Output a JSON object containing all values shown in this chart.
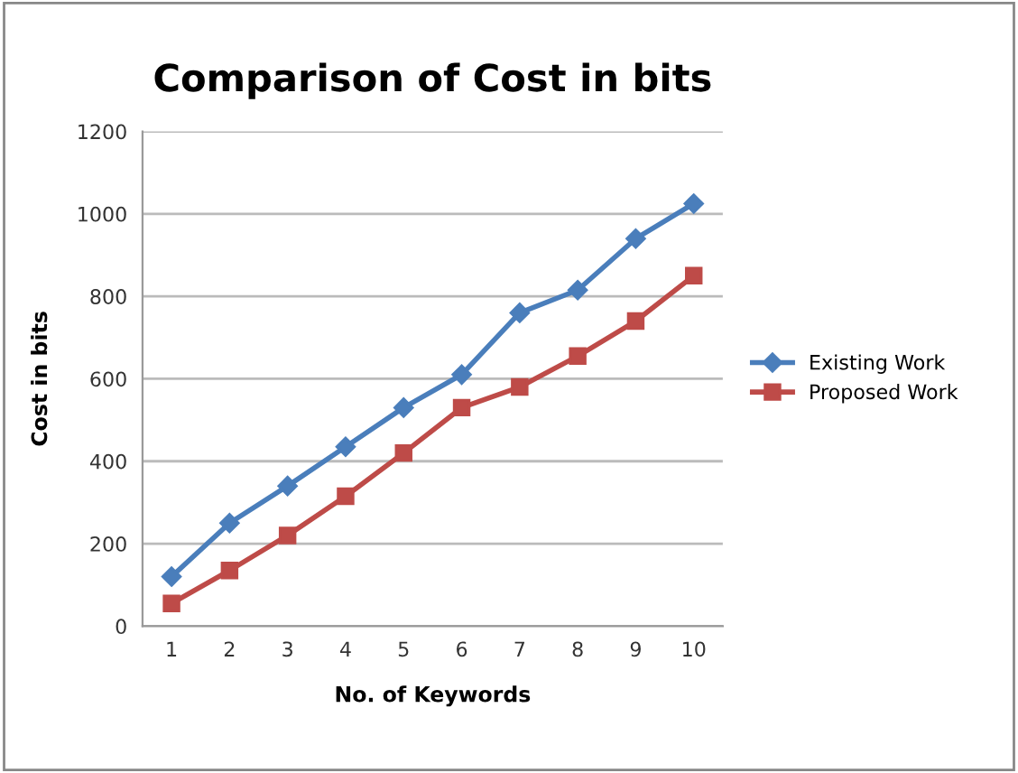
{
  "chart_data": {
    "type": "line",
    "title": "Comparison of Cost in bits",
    "xlabel": "No. of Keywords",
    "ylabel": "Cost in bits",
    "categories": [
      "1",
      "2",
      "3",
      "4",
      "5",
      "6",
      "7",
      "8",
      "9",
      "10"
    ],
    "series": [
      {
        "name": "Existing Work",
        "color": "#4a7ebb",
        "marker": "diamond",
        "values": [
          120,
          250,
          340,
          435,
          530,
          610,
          760,
          815,
          940,
          1025
        ]
      },
      {
        "name": "Proposed Work",
        "color": "#be4b48",
        "marker": "square",
        "values": [
          55,
          135,
          220,
          315,
          420,
          530,
          580,
          655,
          740,
          850
        ]
      }
    ],
    "ylim": [
      0,
      1200
    ],
    "yticks": [
      0,
      200,
      400,
      600,
      800,
      1000,
      1200
    ],
    "grid": "y",
    "legend": "right"
  }
}
